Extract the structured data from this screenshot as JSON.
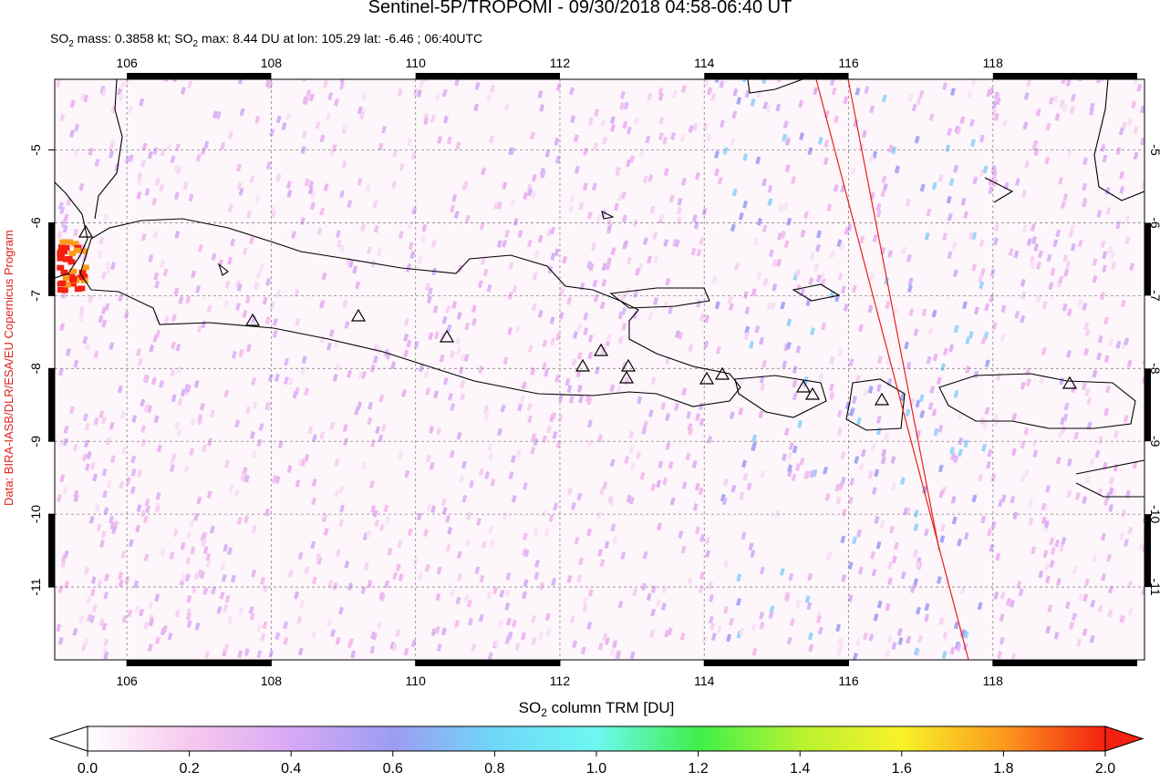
{
  "chart_data": {
    "type": "map",
    "title": "Sentinel-5P/TROPOMI - 09/30/2018 04:58-06:40 UT",
    "subtitle": [
      "SO",
      "2",
      " mass: 0.3858 kt; SO",
      "2",
      " max: 8.44 DU at lon: 105.29 lat: -6.46 ; 06:40UTC"
    ],
    "credit": "Data: BIRA-IASB/DLR/ESA/EU Copernicus Program",
    "xlim": [
      105,
      120.1
    ],
    "xticks": [
      106,
      108,
      110,
      112,
      114,
      116,
      118
    ],
    "ylim": [
      -12,
      -4.03
    ],
    "yticks": [
      -5,
      -6,
      -7,
      -8,
      -9,
      -10,
      -11
    ],
    "grid": true,
    "colorbar": {
      "label": [
        "SO",
        "2",
        " column TRM [DU]"
      ],
      "lim": [
        0,
        2
      ],
      "ticks": [
        {
          "value": 0,
          "label": "0.0"
        },
        0.2,
        0.4,
        0.6,
        0.8,
        {
          "value": 1,
          "label": "1.0"
        },
        1.2,
        1.4,
        1.6,
        1.8,
        {
          "value": 2,
          "label": "2.0"
        }
      ],
      "colors": [
        "#ffffff",
        "#f7c8ee",
        "#d9a8f5",
        "#9c9cf2",
        "#6fd7f7",
        "#6ef7f2",
        "#3ef04a",
        "#b6f230",
        "#f8f228",
        "#fb9a1e",
        "#f42010"
      ]
    }
  }
}
